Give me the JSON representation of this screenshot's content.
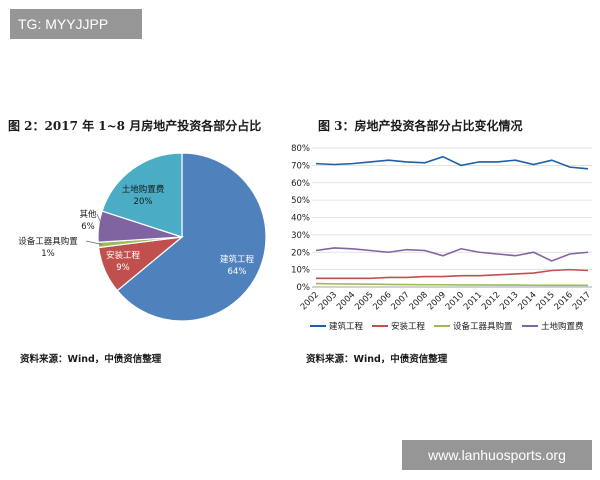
{
  "watermarks": {
    "top_left": "TG: MYYJJPP",
    "bottom_right": "www.lanhuosports.org"
  },
  "chart_data": [
    {
      "type": "pie",
      "title": "图 2：2017 年 1~8 月房地产投资各部分占比",
      "slices": [
        {
          "label": "建筑工程",
          "value": 64,
          "value_label": "64%",
          "color": "#4f81bd"
        },
        {
          "label": "安装工程",
          "value": 9,
          "value_label": "9%",
          "color": "#c0504d"
        },
        {
          "label": "设备工器具购置",
          "value": 1,
          "value_label": "1%",
          "color": "#9bbb59"
        },
        {
          "label": "其他",
          "value": 6,
          "value_label": "6%",
          "color": "#8064a2"
        },
        {
          "label": "土地购置费",
          "value": 20,
          "value_label": "20%",
          "color": "#4bacc6"
        }
      ],
      "source": "资料来源：Wind，中债资信整理"
    },
    {
      "type": "line",
      "title": "图 3：房地产投资各部分占比变化情况",
      "x": [
        "2002",
        "2003",
        "2004",
        "2005",
        "2006",
        "2007",
        "2008",
        "2009",
        "2010",
        "2011",
        "2012",
        "2013",
        "2014",
        "2015",
        "2016",
        "2017"
      ],
      "ylim": [
        0,
        80
      ],
      "y_ticks": [
        "0%",
        "10%",
        "20%",
        "30%",
        "40%",
        "50%",
        "60%",
        "70%",
        "80%"
      ],
      "grid": true,
      "legend_position": "bottom",
      "series": [
        {
          "name": "建筑工程",
          "color": "#1f5fa6",
          "values": [
            71,
            70.5,
            71,
            72,
            73,
            72,
            71.5,
            75,
            70,
            72,
            72,
            73,
            70.5,
            73,
            69,
            68
          ]
        },
        {
          "name": "安装工程",
          "color": "#c0504d",
          "values": [
            5,
            5,
            5,
            5,
            5.5,
            5.5,
            6,
            6,
            6.5,
            6.5,
            7,
            7.5,
            8,
            9.5,
            10,
            9.5
          ]
        },
        {
          "name": "设备工器具购置",
          "color": "#9bbb59",
          "values": [
            2,
            1.8,
            1.7,
            1.6,
            1.5,
            1.4,
            1.3,
            1.3,
            1.2,
            1.2,
            1.1,
            1.1,
            1.0,
            1.0,
            1.0,
            1.0
          ]
        },
        {
          "name": "土地购置费",
          "color": "#8064a2",
          "values": [
            21,
            22.5,
            22,
            21,
            20,
            21.5,
            21,
            18,
            22,
            20,
            19,
            18,
            20,
            15,
            19,
            20
          ]
        }
      ],
      "source": "资料来源：Wind，中债资信整理"
    }
  ]
}
